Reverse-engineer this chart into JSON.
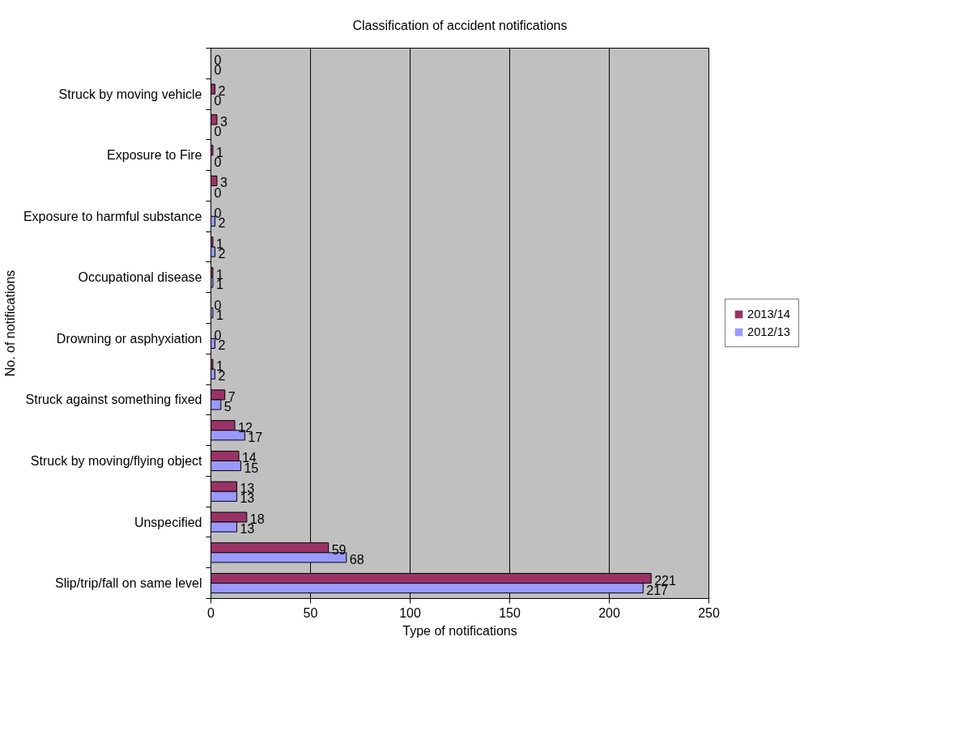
{
  "chart_data": {
    "type": "bar",
    "orientation": "horizontal",
    "title": "Classification of accident notifications",
    "xlabel": "Type of notifications",
    "ylabel": "No. of notifications",
    "categories": [
      null,
      "Struck by moving vehicle",
      null,
      "Exposure to Fire",
      null,
      "Exposure to harmful substance",
      null,
      "Occupational disease",
      null,
      "Drowning or asphyxiation",
      null,
      "Struck against something fixed",
      null,
      "Struck by moving/flying object",
      null,
      "Unspecified",
      null,
      "Slip/trip/fall on same level"
    ],
    "series": [
      {
        "name": "2013/14",
        "color": "#993366",
        "values": [
          0,
          2,
          3,
          1,
          3,
          0,
          1,
          1,
          0,
          0,
          1,
          7,
          12,
          14,
          13,
          18,
          59,
          221
        ]
      },
      {
        "name": "2012/13",
        "color": "#9999ff",
        "values": [
          0,
          0,
          0,
          0,
          0,
          2,
          2,
          1,
          1,
          2,
          2,
          5,
          17,
          15,
          13,
          13,
          68,
          217
        ]
      }
    ],
    "xlim": [
      0,
      250
    ],
    "xticks": [
      0,
      50,
      100,
      150,
      200,
      250
    ],
    "grid": "x",
    "legend": "right",
    "data_labels": true
  }
}
